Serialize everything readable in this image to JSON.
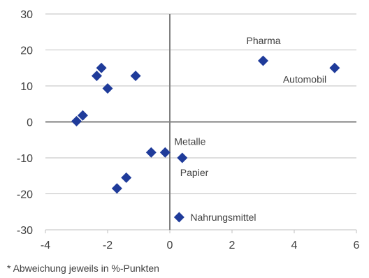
{
  "chart_data": {
    "type": "scatter",
    "title": "",
    "xlabel": "",
    "ylabel": "",
    "xlim": [
      -4,
      6
    ],
    "ylim": [
      -30,
      30
    ],
    "xticks": [
      "-4",
      "-2",
      "0",
      "2",
      "4",
      "6"
    ],
    "yticks": [
      "30",
      "20",
      "10",
      "0",
      "-10",
      "-20",
      "-30"
    ],
    "grid": "horizontal",
    "marker_color": "#1f3b9a",
    "axis_color": "#808080",
    "points": [
      {
        "x": 3.0,
        "y": 17,
        "label": "Pharma"
      },
      {
        "x": 5.3,
        "y": 15,
        "label": "Automobil"
      },
      {
        "x": -0.15,
        "y": -8.5,
        "label": "Metalle"
      },
      {
        "x": 0.4,
        "y": -10,
        "label": "Papier"
      },
      {
        "x": 0.3,
        "y": -26.5,
        "label": "Nahrungsmittel"
      },
      {
        "x": -2.2,
        "y": 15,
        "label": ""
      },
      {
        "x": -2.35,
        "y": 12.8,
        "label": ""
      },
      {
        "x": -1.1,
        "y": 12.8,
        "label": ""
      },
      {
        "x": -2.0,
        "y": 9.3,
        "label": ""
      },
      {
        "x": -2.8,
        "y": 1.8,
        "label": ""
      },
      {
        "x": -3.0,
        "y": 0.2,
        "label": ""
      },
      {
        "x": -0.6,
        "y": -8.5,
        "label": ""
      },
      {
        "x": -1.4,
        "y": -15.5,
        "label": ""
      },
      {
        "x": -1.7,
        "y": -18.5,
        "label": ""
      }
    ]
  },
  "footnote": "* Abweichung jeweils in %-Punkten"
}
